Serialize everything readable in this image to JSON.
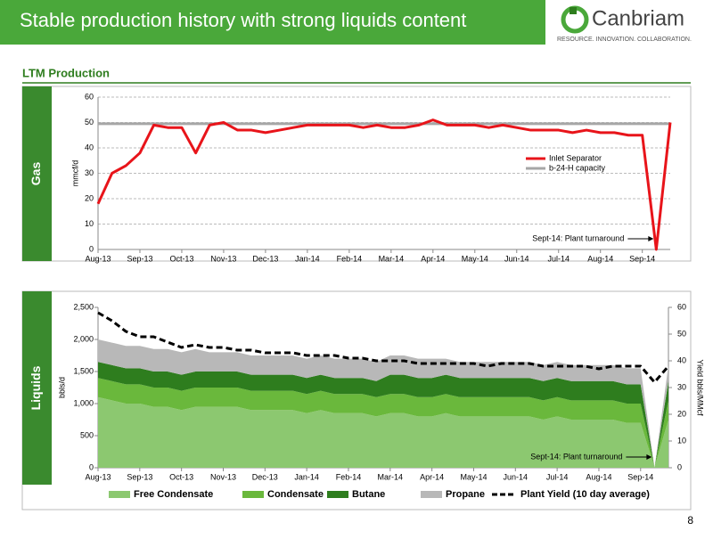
{
  "header": {
    "title": "Stable production history with strong liquids content",
    "logo": "Canbriam",
    "tagline": "RESOURCE. INNOVATION. COLLABORATION."
  },
  "section_title": "LTM Production",
  "page_number": "8",
  "chart_data": [
    {
      "type": "line",
      "panel_label": "Gas",
      "y_label": "mmcf/d",
      "annotation": "Sept-14: Plant turnaround",
      "grid": true,
      "legend": "upper right",
      "categories": [
        "Aug-13",
        null,
        null,
        "Sep-13",
        null,
        null,
        "Oct-13",
        null,
        null,
        "Nov-13",
        null,
        null,
        "Dec-13",
        null,
        null,
        "Jan-14",
        null,
        null,
        "Feb-14",
        null,
        null,
        "Mar-14",
        null,
        null,
        "Apr-14",
        null,
        null,
        "May-14",
        null,
        null,
        "Jun-14",
        null,
        null,
        "Jul-14",
        null,
        null,
        "Aug-14",
        null,
        null,
        "Sep-14",
        null,
        null
      ],
      "ylim": [
        0,
        60
      ],
      "yticks": [
        0,
        10,
        20,
        30,
        40,
        50,
        60
      ],
      "series": [
        {
          "name": "Inlet Separator",
          "color": "#e8141a",
          "values": [
            18,
            30,
            33,
            38,
            49,
            48,
            48,
            38,
            49,
            50,
            47,
            47,
            46,
            47,
            48,
            49,
            49,
            49,
            49,
            48,
            49,
            48,
            48,
            49,
            51,
            49,
            49,
            49,
            48,
            49,
            48,
            47,
            47,
            47,
            46,
            47,
            46,
            46,
            45,
            45,
            0,
            50
          ]
        },
        {
          "name": "b-24-H capacity",
          "color": "#a6a6a6",
          "values": [
            49.5,
            49.5,
            49.5,
            49.5,
            49.5,
            49.5,
            49.5,
            49.5,
            49.5,
            49.5,
            49.5,
            49.5,
            49.5,
            49.5,
            49.5,
            49.5,
            49.5,
            49.5,
            49.5,
            49.5,
            49.5,
            49.5,
            49.5,
            49.5,
            49.5,
            49.5,
            49.5,
            49.5,
            49.5,
            49.5,
            49.5,
            49.5,
            49.5,
            49.5,
            49.5,
            49.5,
            49.5,
            49.5,
            49.5,
            49.5,
            49.5,
            49.5
          ]
        }
      ]
    },
    {
      "type": "stacked_area",
      "panel_label": "Liquids",
      "y_label": "bbls/d",
      "y2_label": "Yield bbls/MMcf",
      "annotation": "Sept-14: Plant turnaround",
      "grid": false,
      "legend": "bottom",
      "categories": [
        "Aug-13",
        null,
        null,
        "Sep-13",
        null,
        null,
        "Oct-13",
        null,
        null,
        "Nov-13",
        null,
        null,
        "Dec-13",
        null,
        null,
        "Jan-14",
        null,
        null,
        "Feb-14",
        null,
        null,
        "Mar-14",
        null,
        null,
        "Apr-14",
        null,
        null,
        "May-14",
        null,
        null,
        "Jun-14",
        null,
        null,
        "Jul-14",
        null,
        null,
        "Aug-14",
        null,
        null,
        "Sep-14",
        null,
        null
      ],
      "ylim": [
        0,
        2500
      ],
      "yticks": [
        0,
        500,
        {
          "value": 1000,
          "label": "1,000"
        },
        {
          "value": 1500,
          "label": "1,500"
        },
        {
          "value": 2000,
          "label": "2,000"
        },
        {
          "value": 2500,
          "label": "2,500"
        }
      ],
      "y2lim": [
        0,
        60
      ],
      "y2ticks": [
        0,
        10,
        20,
        30,
        40,
        50,
        60
      ],
      "series": [
        {
          "name": "Free Condensate",
          "color": "#8cc870",
          "values": [
            1100,
            1050,
            1000,
            1000,
            950,
            950,
            900,
            950,
            950,
            950,
            950,
            900,
            900,
            900,
            900,
            850,
            900,
            850,
            850,
            850,
            800,
            850,
            850,
            800,
            800,
            850,
            800,
            800,
            800,
            800,
            800,
            800,
            750,
            800,
            750,
            750,
            750,
            750,
            700,
            700,
            0,
            750
          ]
        },
        {
          "name": "Condensate",
          "color": "#6ab83c",
          "values": [
            300,
            300,
            300,
            300,
            300,
            300,
            300,
            300,
            300,
            300,
            300,
            300,
            300,
            300,
            300,
            300,
            300,
            300,
            300,
            300,
            300,
            300,
            300,
            300,
            300,
            300,
            300,
            300,
            300,
            300,
            300,
            300,
            300,
            300,
            300,
            300,
            300,
            300,
            300,
            300,
            0,
            300
          ]
        },
        {
          "name": "Butane",
          "color": "#2e7d1e",
          "values": [
            250,
            250,
            250,
            250,
            250,
            250,
            250,
            250,
            250,
            250,
            250,
            250,
            250,
            250,
            250,
            250,
            250,
            250,
            250,
            250,
            250,
            300,
            300,
            300,
            300,
            300,
            300,
            300,
            300,
            300,
            300,
            300,
            300,
            300,
            300,
            300,
            300,
            300,
            300,
            300,
            0,
            300
          ]
        },
        {
          "name": "Propane",
          "color": "#b8b8b8",
          "values": [
            350,
            350,
            350,
            350,
            350,
            350,
            350,
            350,
            300,
            300,
            300,
            300,
            300,
            300,
            300,
            300,
            300,
            300,
            300,
            300,
            300,
            300,
            300,
            300,
            300,
            250,
            250,
            250,
            250,
            250,
            250,
            250,
            250,
            250,
            250,
            250,
            250,
            250,
            250,
            250,
            0,
            250
          ]
        },
        {
          "name": "Plant Yield (10 day average)",
          "color": "#000000",
          "axis": "y2",
          "dashed": true,
          "values": [
            58,
            55,
            51,
            49,
            49,
            47,
            45,
            46,
            45,
            45,
            44,
            44,
            43,
            43,
            43,
            42,
            42,
            42,
            41,
            41,
            40,
            40,
            40,
            39,
            39,
            39,
            39,
            39,
            38,
            39,
            39,
            39,
            38,
            38,
            38,
            38,
            37,
            38,
            38,
            38,
            32,
            38
          ]
        }
      ]
    }
  ]
}
